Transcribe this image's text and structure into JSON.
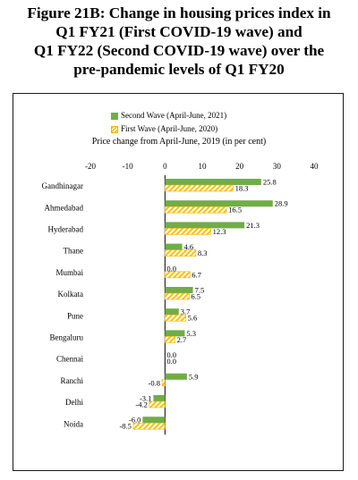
{
  "title_lines": [
    "Figure 21B: Change in housing prices index in",
    "Q1 FY21 (First COVID-19 wave) and",
    "Q1 FY22 (Second COVID-19 wave) over the",
    "pre-pandemic levels of Q1 FY20"
  ],
  "colors": {
    "second_wave": "#70ad47",
    "first_wave": "#ffc000",
    "first_wave_border": "#f0b400"
  },
  "chart_data": {
    "type": "bar",
    "orientation": "horizontal",
    "title": "Figure 21B: Change in housing prices index in Q1 FY21 (First COVID-19 wave) and Q1 FY22 (Second COVID-19 wave) over the pre-pandemic levels of Q1 FY20",
    "xlabel": "Price change from April-June, 2019 (in per cent)",
    "ylabel": "",
    "xlim": [
      -20,
      40
    ],
    "xticks": [
      -20,
      -10,
      0,
      10,
      20,
      30,
      40
    ],
    "legend_position": "top",
    "grid": false,
    "categories": [
      "Gandhinagar",
      "Ahmedabad",
      "Hyderabad",
      "Thane",
      "Mumbai",
      "Kolkata",
      "Pune",
      "Bengaluru",
      "Chennai",
      "Ranchi",
      "Delhi",
      "Noida"
    ],
    "series": [
      {
        "name": "Second Wave (April-June, 2021)",
        "values": [
          25.8,
          28.9,
          21.3,
          4.6,
          0.0,
          7.5,
          3.7,
          5.3,
          0.0,
          5.9,
          -3.1,
          -6.0
        ]
      },
      {
        "name": "First Wave (April-June, 2020)",
        "values": [
          18.3,
          16.5,
          12.3,
          8.3,
          6.7,
          6.5,
          5.6,
          2.7,
          0.0,
          -0.8,
          -4.2,
          -8.5
        ]
      }
    ]
  }
}
